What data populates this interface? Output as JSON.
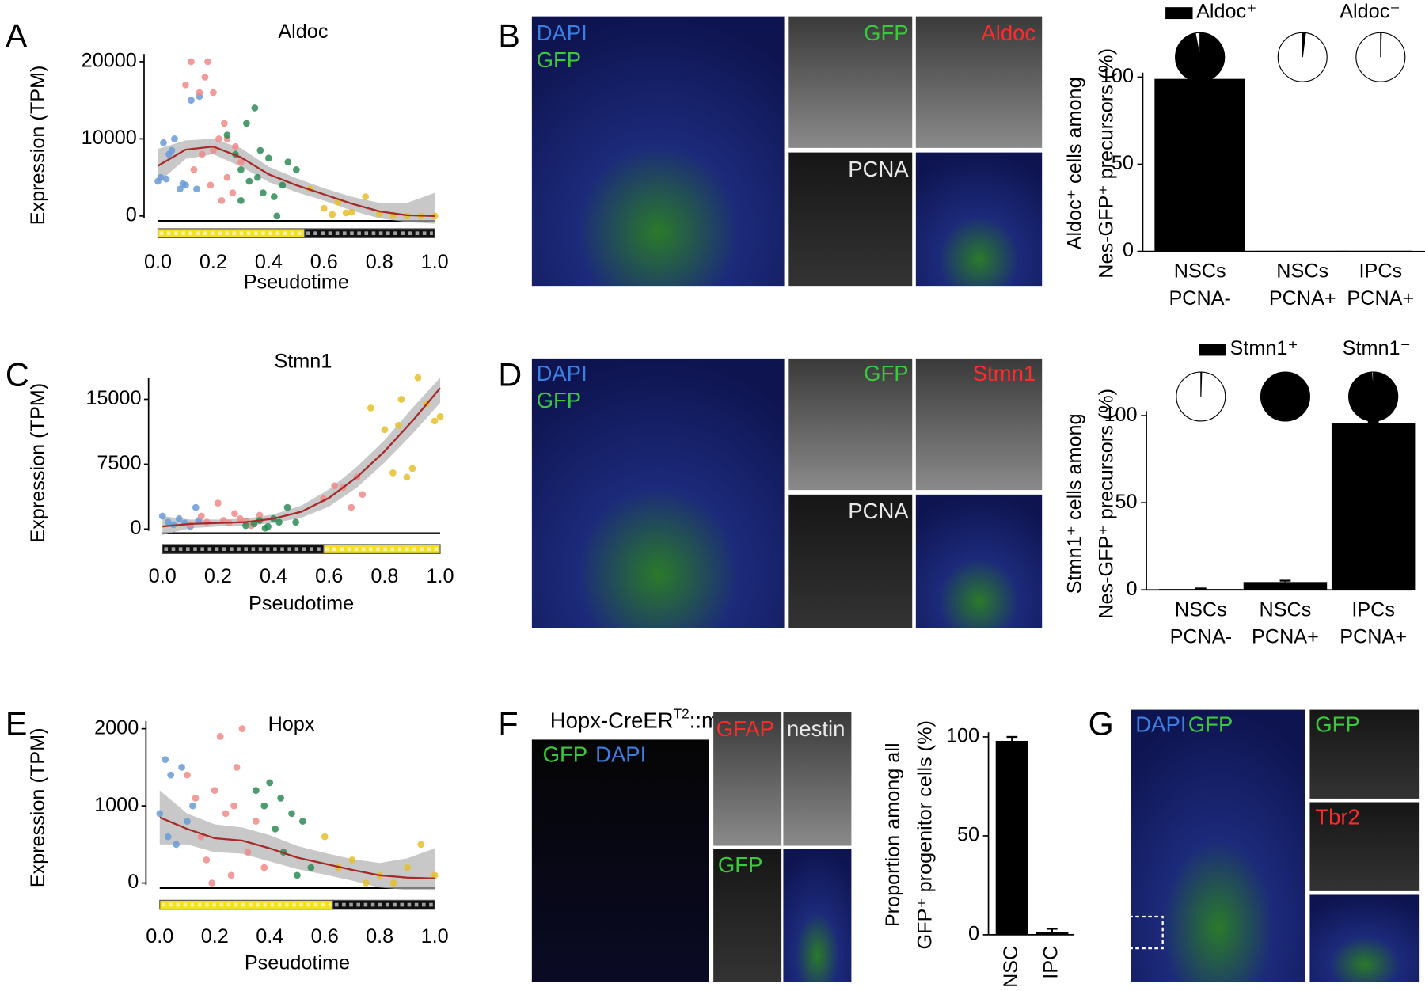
{
  "panel_letters": [
    "A",
    "B",
    "C",
    "D",
    "E",
    "F",
    "G"
  ],
  "chart_data": [
    {
      "type": "scatter",
      "title": "Aldoc",
      "ylabel": "Expression (TPM)",
      "xlabel": "Pseudotime",
      "xlim": [
        -0.05,
        1.05
      ],
      "ylim": [
        -1000,
        21000
      ],
      "xticks": [
        {
          "value": 0,
          "label": "0.0"
        },
        {
          "value": 0.2,
          "label": "0.2"
        },
        {
          "value": 0.4,
          "label": "0.4"
        },
        {
          "value": 0.6,
          "label": "0.6"
        },
        {
          "value": 0.8,
          "label": "0.8"
        },
        {
          "value": 1,
          "label": "1.0"
        }
      ],
      "yticks": [
        0,
        10000,
        20000
      ],
      "series": [
        {
          "color": "#6a9bd8",
          "x": [
            0.0,
            0.01,
            0.02,
            0.03,
            0.05,
            0.06,
            0.08,
            0.1,
            0.12,
            0.14,
            0.15,
            0.04,
            0.09
          ],
          "values": [
            4500,
            5000,
            9500,
            4800,
            8500,
            10000,
            3500,
            4000,
            15000,
            3500,
            15500,
            8000,
            4200
          ]
        },
        {
          "color": "#f08a8a",
          "x": [
            0.1,
            0.12,
            0.13,
            0.15,
            0.16,
            0.18,
            0.2,
            0.2,
            0.22,
            0.23,
            0.25,
            0.25,
            0.27,
            0.28,
            0.3,
            0.17,
            0.19,
            0.24
          ],
          "values": [
            17000,
            20000,
            6000,
            16000,
            8000,
            20000,
            8500,
            16000,
            10000,
            2000,
            10000,
            5000,
            3000,
            9000,
            7000,
            18000,
            4000,
            12000
          ]
        },
        {
          "color": "#2e8b57",
          "x": [
            0.25,
            0.28,
            0.3,
            0.32,
            0.33,
            0.35,
            0.36,
            0.38,
            0.4,
            0.42,
            0.45,
            0.47,
            0.5,
            0.3,
            0.37,
            0.43
          ],
          "values": [
            10500,
            8000,
            6000,
            12000,
            4500,
            14000,
            5000,
            3000,
            7500,
            2500,
            4000,
            7000,
            6000,
            2000,
            8500,
            0
          ]
        },
        {
          "color": "#e6c02a",
          "x": [
            0.55,
            0.6,
            0.63,
            0.65,
            0.7,
            0.75,
            0.8,
            0.85,
            0.9,
            0.95,
            1.0,
            0.68
          ],
          "values": [
            3500,
            1000,
            200,
            1800,
            500,
            2500,
            300,
            100,
            0,
            0,
            0,
            400
          ]
        }
      ],
      "fit": {
        "color": "#a52a2a",
        "band_color": "#b0b0b0",
        "x": [
          0,
          0.1,
          0.2,
          0.3,
          0.4,
          0.5,
          0.6,
          0.7,
          0.8,
          0.9,
          1.0
        ],
        "values": [
          6500,
          8600,
          9000,
          7600,
          5400,
          4000,
          2800,
          1600,
          600,
          100,
          0
        ],
        "upper": [
          8700,
          9800,
          10000,
          8800,
          6400,
          4900,
          3600,
          2500,
          1700,
          1700,
          3000
        ],
        "lower": [
          4300,
          7400,
          8000,
          6400,
          4400,
          3100,
          2000,
          700,
          -300,
          -800,
          -1000
        ]
      },
      "pseudotime_bar": [
        {
          "from": 0,
          "to": 0.53,
          "color": "#f5e11a"
        },
        {
          "from": 0.53,
          "to": 1,
          "color": "#111111"
        }
      ]
    },
    {
      "type": "bar",
      "ylabel": [
        "Aldoc⁺ cells among",
        "Nes-GFP⁺ precursors (%)"
      ],
      "categories": [
        [
          "NSCs",
          "PCNA-"
        ],
        [
          "NSCs",
          "PCNA+"
        ],
        [
          "IPCs",
          "PCNA+"
        ]
      ],
      "values": [
        99,
        0.3,
        0.3
      ],
      "color": "#000000",
      "ylim": [
        0,
        100
      ],
      "yticks": [
        0,
        50,
        100
      ],
      "pies": [
        97,
        2,
        0.5
      ],
      "pie_legend": [
        {
          "name": "Aldoc⁺",
          "color": "#000000"
        },
        {
          "name": "Aldoc⁻"
        }
      ]
    },
    {
      "type": "scatter",
      "title": "Stmn1",
      "ylabel": "Expression (TPM)",
      "xlabel": "Pseudotime",
      "xlim": [
        -0.05,
        1.05
      ],
      "ylim": [
        -800,
        17500
      ],
      "xticks": [
        {
          "value": 0,
          "label": "0.0"
        },
        {
          "value": 0.2,
          "label": "0.2"
        },
        {
          "value": 0.4,
          "label": "0.4"
        },
        {
          "value": 0.6,
          "label": "0.6"
        },
        {
          "value": 0.8,
          "label": "0.8"
        },
        {
          "value": 1,
          "label": "1.0"
        }
      ],
      "yticks": [
        0,
        7500,
        15000
      ],
      "series": [
        {
          "color": "#6a9bd8",
          "x": [
            0,
            0.02,
            0.04,
            0.06,
            0.08,
            0.1,
            0.12,
            0.13
          ],
          "values": [
            1500,
            800,
            500,
            1200,
            700,
            300,
            2500,
            1000
          ]
        },
        {
          "color": "#f08a8a",
          "x": [
            0.1,
            0.14,
            0.16,
            0.2,
            0.22,
            0.24,
            0.26,
            0.28,
            0.3,
            0.32,
            0.35,
            0.58,
            0.62,
            0.65,
            0.68,
            0.7,
            0.72
          ],
          "values": [
            500,
            1500,
            800,
            3000,
            1000,
            700,
            1800,
            1200,
            900,
            400,
            1600,
            3500,
            5000,
            4800,
            2500,
            6000,
            4000
          ]
        },
        {
          "color": "#2e8b57",
          "x": [
            0.3,
            0.33,
            0.35,
            0.38,
            0.4,
            0.42,
            0.45,
            0.48,
            0.37
          ],
          "values": [
            400,
            600,
            1000,
            300,
            1200,
            800,
            2500,
            800,
            100
          ]
        },
        {
          "color": "#e6c02a",
          "x": [
            0.75,
            0.8,
            0.83,
            0.85,
            0.88,
            0.9,
            0.92,
            0.95,
            0.98,
            1.0,
            0.86
          ],
          "values": [
            14000,
            11500,
            6500,
            12000,
            6000,
            7000,
            17500,
            14500,
            12500,
            13000,
            15000
          ]
        }
      ],
      "fit": {
        "color": "#a52a2a",
        "band_color": "#b0b0b0",
        "x": [
          0,
          0.1,
          0.2,
          0.3,
          0.4,
          0.5,
          0.6,
          0.7,
          0.8,
          0.9,
          1.0
        ],
        "values": [
          300,
          600,
          700,
          800,
          1200,
          2000,
          3600,
          6000,
          9000,
          12500,
          16300
        ],
        "upper": [
          1500,
          1100,
          1100,
          1200,
          1700,
          2700,
          4600,
          7200,
          10300,
          14000,
          17500
        ],
        "lower": [
          -700,
          100,
          300,
          400,
          700,
          1300,
          2600,
          4800,
          7700,
          11000,
          14600
        ]
      },
      "pseudotime_bar": [
        {
          "from": 0,
          "to": 0.58,
          "color": "#111111"
        },
        {
          "from": 0.58,
          "to": 1,
          "color": "#f5e11a"
        }
      ]
    },
    {
      "type": "bar",
      "ylabel": [
        "Stmn1⁺ cells among",
        "Nes-GFP⁺ precursors (%)"
      ],
      "categories": [
        [
          "NSCs",
          "PCNA-"
        ],
        [
          "NSCs",
          "PCNA+"
        ],
        [
          "IPCs",
          "PCNA+"
        ]
      ],
      "values": [
        0.5,
        4.5,
        95.5
      ],
      "errors": [
        0.3,
        0.8,
        1
      ],
      "color": "#000000",
      "ylim": [
        0,
        100
      ],
      "yticks": [
        0,
        50,
        100
      ],
      "pies": [
        0.5,
        100,
        99
      ],
      "pie_legend": [
        {
          "name": "Stmn1⁺",
          "color": "#000000"
        },
        {
          "name": "Stmn1⁻"
        }
      ]
    },
    {
      "type": "scatter",
      "title": "Hopx",
      "ylabel": "Expression (TPM)",
      "xlabel": "Pseudotime",
      "xlim": [
        -0.05,
        1.05
      ],
      "ylim": [
        -100,
        2100
      ],
      "xticks": [
        {
          "value": 0,
          "label": "0.0"
        },
        {
          "value": 0.2,
          "label": "0.2"
        },
        {
          "value": 0.4,
          "label": "0.4"
        },
        {
          "value": 0.6,
          "label": "0.6"
        },
        {
          "value": 0.8,
          "label": "0.8"
        },
        {
          "value": 1,
          "label": "1.0"
        }
      ],
      "yticks": [
        0,
        1000,
        2000
      ],
      "series": [
        {
          "color": "#6a9bd8",
          "x": [
            0,
            0.02,
            0.04,
            0.06,
            0.08,
            0.1,
            0.12,
            0.03
          ],
          "values": [
            900,
            1600,
            1400,
            500,
            1500,
            800,
            1000,
            600
          ]
        },
        {
          "color": "#f08a8a",
          "x": [
            0.1,
            0.13,
            0.15,
            0.17,
            0.2,
            0.22,
            0.24,
            0.26,
            0.28,
            0.3,
            0.32,
            0.35,
            0.38,
            0.19,
            0.27
          ],
          "values": [
            1400,
            1100,
            600,
            300,
            1200,
            1900,
            900,
            100,
            1500,
            2000,
            400,
            800,
            200,
            0,
            1000
          ]
        },
        {
          "color": "#2e8b57",
          "x": [
            0.35,
            0.38,
            0.4,
            0.42,
            0.45,
            0.48,
            0.5,
            0.52,
            0.55,
            0.44
          ],
          "values": [
            1200,
            1000,
            1300,
            700,
            400,
            900,
            100,
            800,
            200,
            1100
          ]
        },
        {
          "color": "#e6c02a",
          "x": [
            0.6,
            0.65,
            0.7,
            0.8,
            0.85,
            0.9,
            0.95,
            1.0,
            0.75
          ],
          "values": [
            600,
            200,
            300,
            100,
            0,
            200,
            500,
            100,
            0
          ]
        }
      ],
      "fit": {
        "color": "#a52a2a",
        "band_color": "#b0b0b0",
        "x": [
          0,
          0.1,
          0.2,
          0.3,
          0.4,
          0.5,
          0.6,
          0.7,
          0.8,
          0.9,
          1.0
        ],
        "values": [
          850,
          700,
          580,
          550,
          450,
          330,
          250,
          170,
          100,
          70,
          60
        ],
        "upper": [
          1200,
          900,
          760,
          720,
          620,
          480,
          390,
          310,
          260,
          320,
          450
        ],
        "lower": [
          500,
          500,
          400,
          380,
          280,
          180,
          110,
          30,
          -60,
          -90,
          -100
        ]
      },
      "pseudotime_bar": [
        {
          "from": 0,
          "to": 0.63,
          "color": "#f5e11a"
        },
        {
          "from": 0.63,
          "to": 1,
          "color": "#111111"
        }
      ]
    },
    {
      "type": "bar",
      "ylabel": [
        "Proportion among all",
        "GFP⁺ progenitor cells (%)"
      ],
      "categories": [
        [
          "NSC"
        ],
        [
          "IPC"
        ]
      ],
      "rotate_categories": true,
      "values": [
        98,
        1.5
      ],
      "errors": [
        2,
        1.5
      ],
      "color": "#000000",
      "ylim": [
        0,
        100
      ],
      "yticks": [
        0,
        50,
        100
      ]
    }
  ],
  "images": {
    "B": [
      "DAPI",
      "GFP",
      "GFP",
      "Aldoc",
      "PCNA"
    ],
    "D": [
      "DAPI",
      "GFP",
      "GFP",
      "Stmn1",
      "PCNA"
    ],
    "F": {
      "title": [
        "Hopx-CreER",
        "T2",
        "::mT/mG"
      ],
      "labels": [
        "GFP",
        "DAPI",
        "GFAP",
        "nestin",
        "GFP"
      ]
    },
    "G": [
      "DAPI",
      "GFP",
      "GFP",
      "Tbr2"
    ]
  }
}
